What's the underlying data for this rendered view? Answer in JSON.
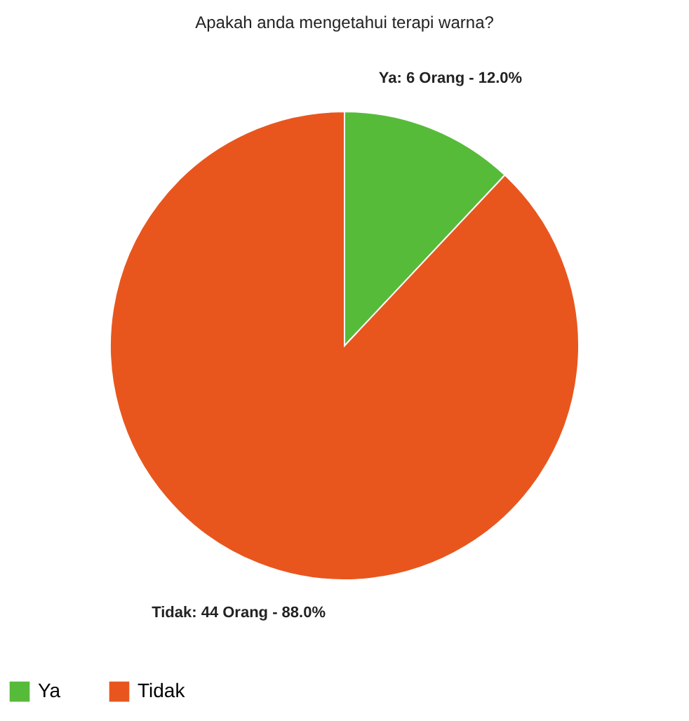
{
  "chart_data": {
    "type": "pie",
    "title": "Apakah anda mengetahui terapi warna?",
    "categories": [
      "Ya",
      "Tidak"
    ],
    "values": [
      6,
      44
    ],
    "colors": [
      "#57bb3a",
      "#e8561e"
    ],
    "value_labels": [
      "Ya: 6 Orang - 12.0%",
      "Tidak: 44 Orang - 88.0%"
    ],
    "legend": "bottom"
  }
}
